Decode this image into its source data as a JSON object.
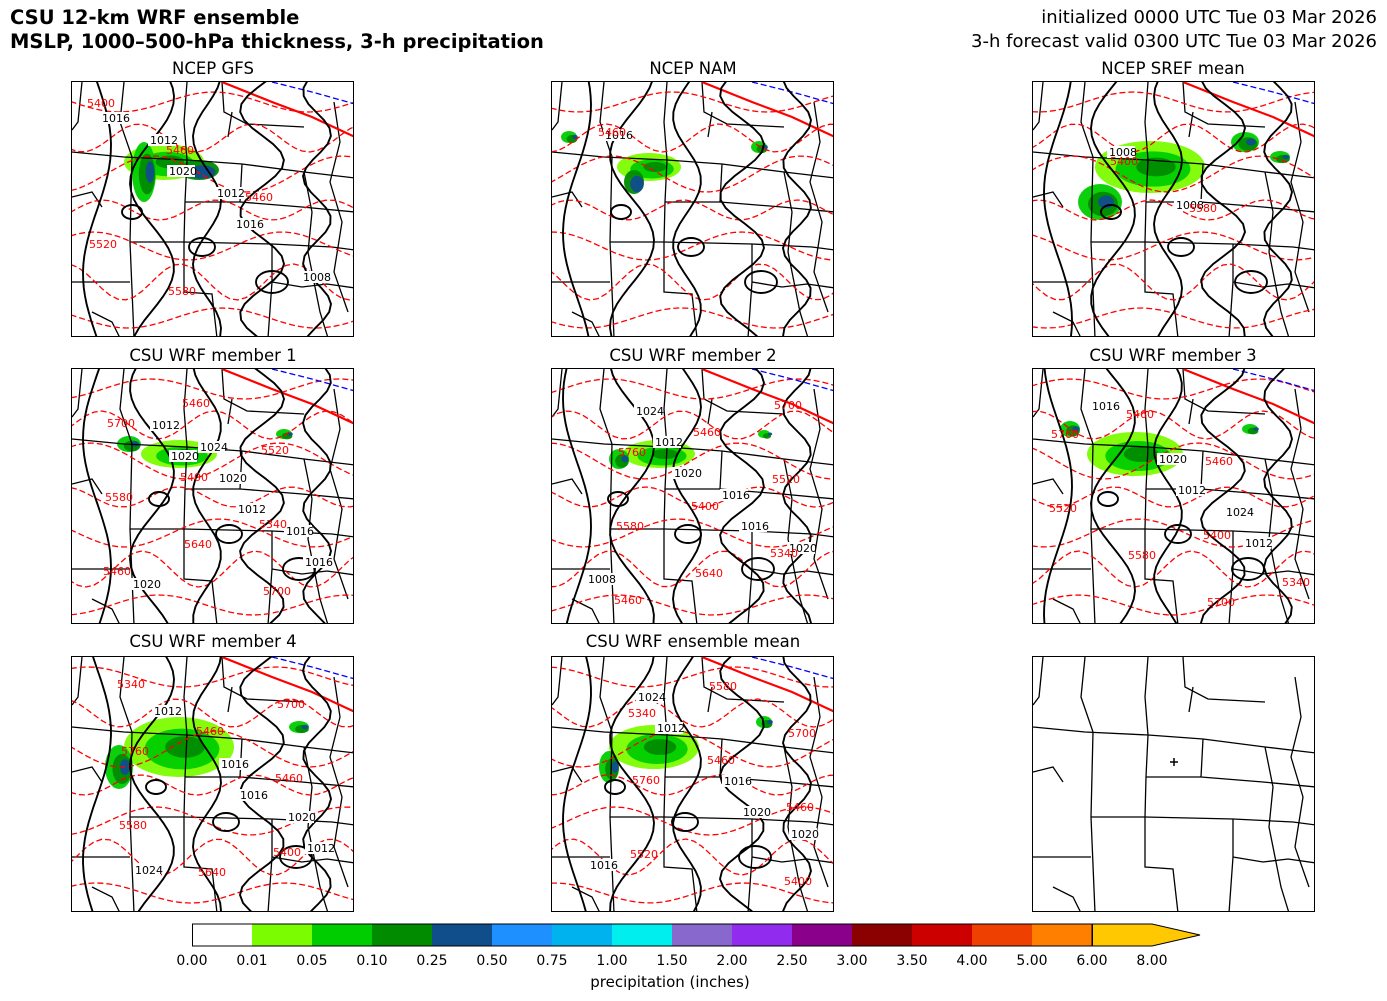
{
  "header": {
    "title_line1": "CSU 12-km WRF ensemble",
    "title_line2": "MSLP, 1000–500-hPa thickness, 3-h precipitation",
    "init_line": "initialized 0000 UTC Tue 03 Mar 2026",
    "valid_line": "3-h forecast valid 0300 UTC Tue 03 Mar 2026"
  },
  "panels": [
    {
      "title": "NCEP GFS",
      "labels": {
        "mslp": [
          "1016",
          "1020",
          "1016",
          "1008",
          "1012",
          "1012"
        ],
        "thickness": [
          "5400",
          "5460",
          "5460",
          "5520",
          "5580"
        ]
      }
    },
    {
      "title": "NCEP NAM",
      "labels": {
        "mslp": [
          "1016"
        ],
        "thickness": [
          "5460"
        ]
      }
    },
    {
      "title": "NCEP SREF mean",
      "labels": {
        "mslp": [
          "1008",
          "1008"
        ],
        "thickness": [
          "5400",
          "5580"
        ]
      }
    },
    {
      "title": "CSU WRF member 1",
      "labels": {
        "mslp": [
          "1020",
          "1012",
          "1016",
          "1012",
          "1020",
          "1016",
          "1020",
          "1024"
        ],
        "thickness": [
          "5400",
          "5340",
          "5460",
          "5460",
          "5520",
          "5580",
          "5640",
          "5700",
          "5700"
        ]
      }
    },
    {
      "title": "CSU WRF member 2",
      "labels": {
        "mslp": [
          "1020",
          "1016",
          "1008",
          "1012",
          "1016",
          "1020",
          "1024"
        ],
        "thickness": [
          "5400",
          "5340",
          "5460",
          "5460",
          "5520",
          "5580",
          "5640",
          "5700",
          "5760"
        ]
      }
    },
    {
      "title": "CSU WRF member 3",
      "labels": {
        "mslp": [
          "1012",
          "1012",
          "1016",
          "1020",
          "1024"
        ],
        "thickness": [
          "5400",
          "5340",
          "5460",
          "5460",
          "5520",
          "5580",
          "5700",
          "5760"
        ]
      }
    },
    {
      "title": "CSU WRF member 4",
      "labels": {
        "mslp": [
          "1016",
          "1012",
          "1012",
          "1016",
          "1020",
          "1024"
        ],
        "thickness": [
          "5400",
          "5340",
          "5460",
          "5460",
          "5580",
          "5640",
          "5700",
          "5760"
        ]
      }
    },
    {
      "title": "CSU WRF ensemble mean",
      "labels": {
        "mslp": [
          "1020",
          "1016",
          "1012",
          "1016",
          "1020",
          "1024"
        ],
        "thickness": [
          "5400",
          "5340",
          "5460",
          "5460",
          "5520",
          "5580",
          "5700",
          "5760"
        ]
      }
    },
    {
      "title": "",
      "labels": {
        "mslp": [],
        "thickness": []
      }
    }
  ],
  "colorbar": {
    "label": "precipitation (inches)",
    "ticks": [
      "0.00",
      "0.01",
      "0.05",
      "0.10",
      "0.25",
      "0.50",
      "0.75",
      "1.00",
      "1.50",
      "2.00",
      "2.50",
      "3.00",
      "3.50",
      "4.00",
      "5.00",
      "6.00",
      "8.00"
    ],
    "colors": [
      "#ffffff",
      "#7cfc00",
      "#00cd00",
      "#008b00",
      "#104e8b",
      "#1e90ff",
      "#00b2ee",
      "#00eeee",
      "#8968cd",
      "#912cee",
      "#8b008b",
      "#8b0000",
      "#cd0000",
      "#ee4000",
      "#ff7f00",
      "#ffc800"
    ]
  },
  "styles": {
    "mslp_color": "#000000",
    "thickness_warm_color": "#ff0000",
    "thickness_cold_color": "#0000ff",
    "border_color": "#000000"
  }
}
